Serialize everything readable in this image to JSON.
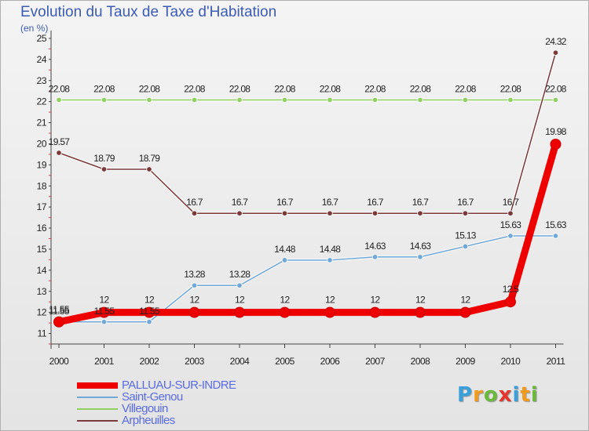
{
  "title": "Evolution du Taux de Taxe d'Habitation",
  "unit": "(en %)",
  "logo": {
    "text": "Proxiti",
    "colors": [
      "#3aa0dc",
      "#f39a1c",
      "#6ab83c",
      "#e4362c",
      "#3aa0dc",
      "#f39a1c",
      "#6ab83c"
    ]
  },
  "chart_data": {
    "type": "line",
    "x": [
      "2000",
      "2001",
      "2002",
      "2003",
      "2004",
      "2005",
      "2006",
      "2007",
      "2008",
      "2009",
      "2010",
      "2011"
    ],
    "ylim": [
      11,
      25
    ],
    "yticks": [
      "11",
      "12",
      "13",
      "14",
      "15",
      "16",
      "17",
      "18",
      "19",
      "20",
      "21",
      "22",
      "23",
      "24",
      "25"
    ],
    "grid": false,
    "legend_position": "bottom-left",
    "series": [
      {
        "name": "Villegouin",
        "color": "#90d060",
        "values": [
          22.08,
          22.08,
          22.08,
          22.08,
          22.08,
          22.08,
          22.08,
          22.08,
          22.08,
          22.08,
          22.08,
          22.08
        ],
        "labels": [
          "22.08",
          "22.08",
          "22.08",
          "22.08",
          "22.08",
          "22.08",
          "22.08",
          "22.08",
          "22.08",
          "22.08",
          "22.08",
          "22.08"
        ]
      },
      {
        "name": "Arpheuilles",
        "color": "#7a3a3a",
        "values": [
          19.57,
          18.79,
          18.79,
          16.7,
          16.7,
          16.7,
          16.7,
          16.7,
          16.7,
          16.7,
          16.7,
          24.32
        ],
        "labels": [
          "19.57",
          "18.79",
          "18.79",
          "16.7",
          "16.7",
          "16.7",
          "16.7",
          "16.7",
          "16.7",
          "16.7",
          "16.7",
          "24.32"
        ]
      },
      {
        "name": "Saint-Genou",
        "color": "#70a8d8",
        "values": [
          11.55,
          11.55,
          11.55,
          13.28,
          13.28,
          14.48,
          14.48,
          14.63,
          14.63,
          15.13,
          15.63,
          15.63
        ],
        "labels": [
          "11.55",
          "11.55",
          "11.55",
          "13.28",
          "13.28",
          "14.48",
          "14.48",
          "14.63",
          "14.63",
          "15.13",
          "15.63",
          "15.63"
        ]
      },
      {
        "name": "PALLUAU-SUR-INDRE",
        "color": "#ee0000",
        "values": [
          11.55,
          12,
          12,
          12,
          12,
          12,
          12,
          12,
          12,
          12,
          12.5,
          19.98
        ],
        "labels": [
          "11.55",
          "12",
          "12",
          "12",
          "12",
          "12",
          "12",
          "12",
          "12",
          "12",
          "12.5",
          "19.98"
        ]
      }
    ]
  },
  "legend": [
    {
      "label": "PALLUAU-SUR-INDRE",
      "color": "#ee0000",
      "thick": 8
    },
    {
      "label": "Saint-Genou",
      "color": "#70a8d8",
      "thick": 2
    },
    {
      "label": "Villegouin",
      "color": "#90d060",
      "thick": 2
    },
    {
      "label": "Arpheuilles",
      "color": "#7a3a3a",
      "thick": 2
    }
  ]
}
